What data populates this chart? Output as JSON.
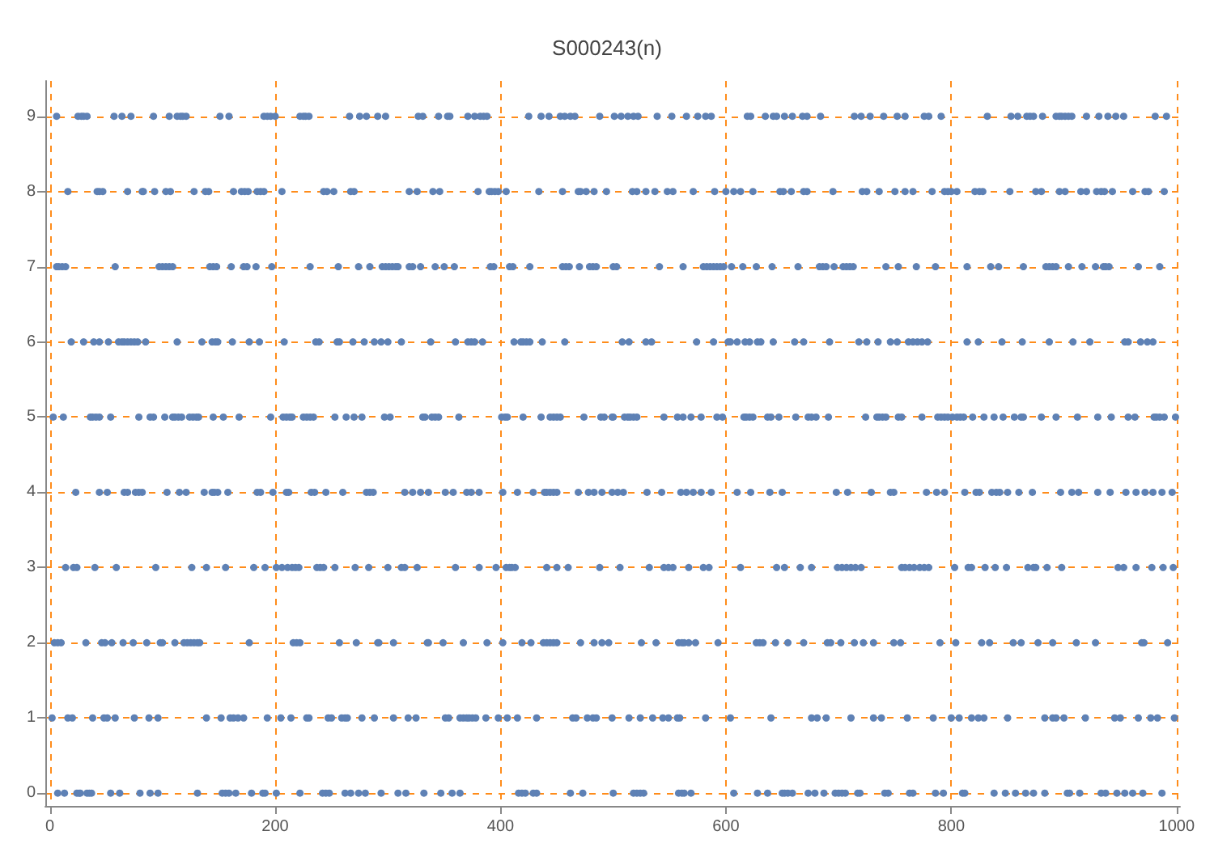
{
  "chart_data": {
    "type": "scatter",
    "title": "S000243(n)",
    "xlim": [
      -4,
      1003
    ],
    "xticks": [
      0,
      200,
      400,
      600,
      800,
      1000
    ],
    "ylim": [
      -0.17,
      9.47
    ],
    "yticks": [
      0,
      1,
      2,
      3,
      4,
      5,
      6,
      7,
      8,
      9
    ],
    "grid": true,
    "marker": "circle",
    "series": [
      {
        "color": "#5e81b5",
        "x": [
          6,
          25,
          28,
          30,
          33,
          57,
          64,
          72,
          92,
          106,
          113,
          116,
          118,
          121,
          151,
          159,
          190,
          193,
          196,
          200,
          222,
          225,
          227,
          230,
          266,
          275,
          281,
          291,
          298,
          327,
          331,
          345,
          353,
          355,
          371,
          377,
          382,
          385,
          388,
          425,
          436,
          443,
          453,
          457,
          462,
          466,
          488,
          501,
          507,
          513,
          518,
          522,
          539,
          552,
          565,
          575,
          582,
          587,
          619,
          622,
          635,
          642,
          645,
          652,
          659,
          668,
          672,
          684,
          714,
          720,
          728,
          740,
          752,
          759,
          776,
          780,
          791,
          832,
          853,
          859,
          867,
          870,
          873,
          881,
          893,
          896,
          898,
          901,
          904,
          907,
          920,
          931,
          939,
          946,
          953,
          981,
          991
        ],
        "values": [
          9,
          9,
          9,
          9,
          9,
          9,
          9,
          9,
          9,
          9,
          9,
          9,
          9,
          9,
          9,
          9,
          9,
          9,
          9,
          9,
          9,
          9,
          9,
          9,
          9,
          9,
          9,
          9,
          9,
          9,
          9,
          9,
          9,
          9,
          9,
          9,
          9,
          9,
          9,
          9,
          9,
          9,
          9,
          9,
          9,
          9,
          9,
          9,
          9,
          9,
          9,
          9,
          9,
          9,
          9,
          9,
          9,
          9,
          9,
          9,
          9,
          9,
          9,
          9,
          9,
          9,
          9,
          9,
          9,
          9,
          9,
          9,
          9,
          9,
          9,
          9,
          9,
          9,
          9,
          9,
          9,
          9,
          9,
          9,
          9,
          9,
          9,
          9,
          9,
          9,
          9,
          9,
          9,
          9,
          9,
          9,
          9
        ]
      },
      {
        "color": "#5e81b5",
        "x": [
          16,
          42,
          44,
          47,
          69,
          82,
          83,
          93,
          103,
          107,
          128,
          138,
          141,
          163,
          170,
          173,
          176,
          184,
          187,
          190,
          206,
          243,
          246,
          252,
          267,
          270,
          319,
          326,
          340,
          346,
          380,
          390,
          392,
          395,
          398,
          405,
          434,
          455,
          469,
          471,
          476,
          483,
          494,
          517,
          521,
          529,
          537,
          548,
          553,
          571,
          590,
          600,
          607,
          613,
          624,
          648,
          651,
          658,
          669,
          672,
          695,
          721,
          725,
          736,
          750,
          759,
          766,
          783,
          794,
          797,
          800,
          805,
          821,
          825,
          828,
          852,
          875,
          880,
          896,
          901,
          915,
          920,
          929,
          933,
          936,
          943,
          961,
          972,
          975,
          989
        ],
        "values": [
          8,
          8,
          8,
          8,
          8,
          8,
          8,
          8,
          8,
          8,
          8,
          8,
          8,
          8,
          8,
          8,
          8,
          8,
          8,
          8,
          8,
          8,
          8,
          8,
          8,
          8,
          8,
          8,
          8,
          8,
          8,
          8,
          8,
          8,
          8,
          8,
          8,
          8,
          8,
          8,
          8,
          8,
          8,
          8,
          8,
          8,
          8,
          8,
          8,
          8,
          8,
          8,
          8,
          8,
          8,
          8,
          8,
          8,
          8,
          8,
          8,
          8,
          8,
          8,
          8,
          8,
          8,
          8,
          8,
          8,
          8,
          8,
          8,
          8,
          8,
          8,
          8,
          8,
          8,
          8,
          8,
          8,
          8,
          8,
          8,
          8,
          8,
          8,
          8,
          8
        ]
      },
      {
        "color": "#5e81b5",
        "x": [
          6,
          8,
          11,
          14,
          58,
          97,
          100,
          103,
          106,
          109,
          142,
          145,
          148,
          161,
          172,
          175,
          183,
          197,
          231,
          256,
          274,
          284,
          295,
          298,
          301,
          304,
          307,
          309,
          319,
          322,
          329,
          342,
          350,
          359,
          391,
          394,
          408,
          411,
          426,
          455,
          458,
          461,
          470,
          479,
          482,
          485,
          500,
          503,
          541,
          562,
          580,
          583,
          586,
          589,
          592,
          595,
          598,
          605,
          615,
          627,
          641,
          664,
          683,
          686,
          689,
          696,
          704,
          707,
          710,
          713,
          742,
          753,
          769,
          786,
          814,
          835,
          842,
          864,
          884,
          887,
          890,
          893,
          904,
          916,
          928,
          935,
          937,
          940,
          966,
          985
        ],
        "values": [
          7,
          7,
          7,
          7,
          7,
          7,
          7,
          7,
          7,
          7,
          7,
          7,
          7,
          7,
          7,
          7,
          7,
          7,
          7,
          7,
          7,
          7,
          7,
          7,
          7,
          7,
          7,
          7,
          7,
          7,
          7,
          7,
          7,
          7,
          7,
          7,
          7,
          7,
          7,
          7,
          7,
          7,
          7,
          7,
          7,
          7,
          7,
          7,
          7,
          7,
          7,
          7,
          7,
          7,
          7,
          7,
          7,
          7,
          7,
          7,
          7,
          7,
          7,
          7,
          7,
          7,
          7,
          7,
          7,
          7,
          7,
          7,
          7,
          7,
          7,
          7,
          7,
          7,
          7,
          7,
          7,
          7,
          7,
          7,
          7,
          7,
          7,
          7,
          7,
          7
        ]
      },
      {
        "color": "#5e81b5",
        "x": [
          19,
          30,
          39,
          44,
          52,
          61,
          64,
          66,
          69,
          72,
          75,
          78,
          85,
          113,
          135,
          144,
          147,
          149,
          162,
          177,
          186,
          208,
          236,
          239,
          255,
          257,
          269,
          279,
          288,
          294,
          300,
          312,
          338,
          360,
          371,
          374,
          377,
          384,
          412,
          418,
          420,
          423,
          426,
          437,
          457,
          508,
          514,
          529,
          534,
          574,
          589,
          602,
          604,
          610,
          617,
          621,
          628,
          631,
          642,
          661,
          669,
          692,
          718,
          725,
          735,
          746,
          752,
          762,
          766,
          770,
          774,
          779,
          814,
          824,
          845,
          863,
          887,
          908,
          923,
          954,
          957,
          968,
          974,
          979
        ],
        "values": [
          6,
          6,
          6,
          6,
          6,
          6,
          6,
          6,
          6,
          6,
          6,
          6,
          6,
          6,
          6,
          6,
          6,
          6,
          6,
          6,
          6,
          6,
          6,
          6,
          6,
          6,
          6,
          6,
          6,
          6,
          6,
          6,
          6,
          6,
          6,
          6,
          6,
          6,
          6,
          6,
          6,
          6,
          6,
          6,
          6,
          6,
          6,
          6,
          6,
          6,
          6,
          6,
          6,
          6,
          6,
          6,
          6,
          6,
          6,
          6,
          6,
          6,
          6,
          6,
          6,
          6,
          6,
          6,
          6,
          6,
          6,
          6,
          6,
          6,
          6,
          6,
          6,
          6,
          6,
          6,
          6,
          6,
          6,
          6
        ]
      },
      {
        "color": "#5e81b5",
        "x": [
          3,
          12,
          36,
          38,
          41,
          44,
          54,
          79,
          89,
          92,
          102,
          109,
          111,
          114,
          117,
          124,
          127,
          130,
          132,
          145,
          154,
          168,
          196,
          207,
          210,
          213,
          215,
          225,
          228,
          231,
          234,
          253,
          263,
          270,
          277,
          297,
          302,
          331,
          333,
          339,
          342,
          345,
          363,
          401,
          404,
          406,
          420,
          436,
          444,
          447,
          450,
          453,
          474,
          489,
          492,
          499,
          500,
          510,
          513,
          515,
          518,
          521,
          545,
          557,
          562,
          569,
          578,
          592,
          597,
          616,
          618,
          621,
          624,
          637,
          640,
          647,
          662,
          673,
          676,
          680,
          691,
          724,
          734,
          736,
          739,
          742,
          753,
          756,
          774,
          788,
          791,
          794,
          797,
          801,
          805,
          808,
          811,
          819,
          829,
          838,
          846,
          856,
          862,
          864,
          880,
          893,
          912,
          930,
          942,
          957,
          963,
          980,
          982,
          985,
          989,
          999
        ],
        "values": [
          5,
          5,
          5,
          5,
          5,
          5,
          5,
          5,
          5,
          5,
          5,
          5,
          5,
          5,
          5,
          5,
          5,
          5,
          5,
          5,
          5,
          5,
          5,
          5,
          5,
          5,
          5,
          5,
          5,
          5,
          5,
          5,
          5,
          5,
          5,
          5,
          5,
          5,
          5,
          5,
          5,
          5,
          5,
          5,
          5,
          5,
          5,
          5,
          5,
          5,
          5,
          5,
          5,
          5,
          5,
          5,
          5,
          5,
          5,
          5,
          5,
          5,
          5,
          5,
          5,
          5,
          5,
          5,
          5,
          5,
          5,
          5,
          5,
          5,
          5,
          5,
          5,
          5,
          5,
          5,
          5,
          5,
          5,
          5,
          5,
          5,
          5,
          5,
          5,
          5,
          5,
          5,
          5,
          5,
          5,
          5,
          5,
          5,
          5,
          5,
          5,
          5,
          5,
          5,
          5,
          5,
          5,
          5,
          5,
          5,
          5,
          5,
          5,
          5,
          5,
          5
        ]
      },
      {
        "color": "#5e81b5",
        "x": [
          23,
          44,
          51,
          66,
          69,
          76,
          79,
          82,
          104,
          115,
          121,
          137,
          144,
          146,
          149,
          158,
          184,
          187,
          198,
          210,
          212,
          232,
          235,
          245,
          260,
          281,
          284,
          287,
          315,
          322,
          329,
          336,
          351,
          358,
          370,
          374,
          381,
          402,
          415,
          429,
          439,
          441,
          444,
          447,
          450,
          469,
          478,
          483,
          490,
          499,
          504,
          509,
          530,
          543,
          560,
          565,
          571,
          578,
          587,
          610,
          622,
          639,
          650,
          698,
          708,
          729,
          746,
          749,
          778,
          787,
          794,
          812,
          822,
          825,
          836,
          840,
          843,
          850,
          860,
          872,
          897,
          907,
          913,
          930,
          941,
          955,
          964,
          972,
          979,
          987,
          996
        ],
        "values": [
          4,
          4,
          4,
          4,
          4,
          4,
          4,
          4,
          4,
          4,
          4,
          4,
          4,
          4,
          4,
          4,
          4,
          4,
          4,
          4,
          4,
          4,
          4,
          4,
          4,
          4,
          4,
          4,
          4,
          4,
          4,
          4,
          4,
          4,
          4,
          4,
          4,
          4,
          4,
          4,
          4,
          4,
          4,
          4,
          4,
          4,
          4,
          4,
          4,
          4,
          4,
          4,
          4,
          4,
          4,
          4,
          4,
          4,
          4,
          4,
          4,
          4,
          4,
          4,
          4,
          4,
          4,
          4,
          4,
          4,
          4,
          4,
          4,
          4,
          4,
          4,
          4,
          4,
          4,
          4,
          4,
          4,
          4,
          4,
          4,
          4,
          4,
          4,
          4,
          4,
          4
        ]
      },
      {
        "color": "#5e81b5",
        "x": [
          14,
          21,
          24,
          40,
          59,
          94,
          126,
          139,
          156,
          181,
          191,
          201,
          206,
          211,
          215,
          218,
          221,
          237,
          240,
          243,
          253,
          271,
          283,
          300,
          312,
          315,
          326,
          360,
          381,
          396,
          405,
          408,
          410,
          413,
          441,
          450,
          460,
          488,
          506,
          532,
          545,
          549,
          553,
          567,
          580,
          585,
          613,
          645,
          652,
          666,
          676,
          699,
          703,
          707,
          711,
          715,
          720,
          756,
          759,
          763,
          767,
          772,
          776,
          780,
          803,
          815,
          818,
          830,
          839,
          849,
          868,
          873,
          875,
          885,
          898,
          948,
          953,
          964,
          978,
          988,
          997
        ],
        "values": [
          3,
          3,
          3,
          3,
          3,
          3,
          3,
          3,
          3,
          3,
          3,
          3,
          3,
          3,
          3,
          3,
          3,
          3,
          3,
          3,
          3,
          3,
          3,
          3,
          3,
          3,
          3,
          3,
          3,
          3,
          3,
          3,
          3,
          3,
          3,
          3,
          3,
          3,
          3,
          3,
          3,
          3,
          3,
          3,
          3,
          3,
          3,
          3,
          3,
          3,
          3,
          3,
          3,
          3,
          3,
          3,
          3,
          3,
          3,
          3,
          3,
          3,
          3,
          3,
          3,
          3,
          3,
          3,
          3,
          3,
          3,
          3,
          3,
          3,
          3,
          3,
          3,
          3,
          3,
          3,
          3
        ]
      },
      {
        "color": "#5e81b5",
        "x": [
          4,
          7,
          10,
          32,
          46,
          49,
          55,
          65,
          74,
          86,
          98,
          100,
          111,
          119,
          122,
          125,
          128,
          131,
          133,
          177,
          216,
          219,
          222,
          257,
          272,
          291,
          292,
          305,
          335,
          336,
          349,
          367,
          388,
          402,
          419,
          427,
          438,
          441,
          444,
          447,
          450,
          471,
          483,
          490,
          496,
          525,
          538,
          558,
          561,
          563,
          567,
          573,
          593,
          627,
          630,
          633,
          644,
          655,
          669,
          690,
          693,
          702,
          714,
          722,
          731,
          749,
          755,
          790,
          804,
          827,
          834,
          855,
          862,
          877,
          890,
          911,
          928,
          969,
          971,
          992
        ],
        "values": [
          2,
          2,
          2,
          2,
          2,
          2,
          2,
          2,
          2,
          2,
          2,
          2,
          2,
          2,
          2,
          2,
          2,
          2,
          2,
          2,
          2,
          2,
          2,
          2,
          2,
          2,
          2,
          2,
          2,
          2,
          2,
          2,
          2,
          2,
          2,
          2,
          2,
          2,
          2,
          2,
          2,
          2,
          2,
          2,
          2,
          2,
          2,
          2,
          2,
          2,
          2,
          2,
          2,
          2,
          2,
          2,
          2,
          2,
          2,
          2,
          2,
          2,
          2,
          2,
          2,
          2,
          2,
          2,
          2,
          2,
          2,
          2,
          2,
          2,
          2,
          2,
          2,
          2,
          2,
          2
        ]
      },
      {
        "color": "#5e81b5",
        "x": [
          2,
          16,
          20,
          38,
          48,
          51,
          58,
          75,
          88,
          96,
          139,
          152,
          160,
          163,
          167,
          172,
          193,
          205,
          214,
          228,
          230,
          247,
          250,
          259,
          262,
          264,
          277,
          288,
          305,
          318,
          325,
          351,
          354,
          364,
          367,
          370,
          372,
          375,
          378,
          387,
          398,
          406,
          415,
          432,
          464,
          467,
          477,
          482,
          485,
          499,
          514,
          524,
          535,
          544,
          549,
          557,
          559,
          582,
          604,
          640,
          676,
          681,
          689,
          711,
          731,
          738,
          761,
          784,
          800,
          807,
          818,
          824,
          829,
          850,
          883,
          890,
          893,
          900,
          919,
          945,
          950,
          966,
          977,
          983,
          998
        ],
        "values": [
          1,
          1,
          1,
          1,
          1,
          1,
          1,
          1,
          1,
          1,
          1,
          1,
          1,
          1,
          1,
          1,
          1,
          1,
          1,
          1,
          1,
          1,
          1,
          1,
          1,
          1,
          1,
          1,
          1,
          1,
          1,
          1,
          1,
          1,
          1,
          1,
          1,
          1,
          1,
          1,
          1,
          1,
          1,
          1,
          1,
          1,
          1,
          1,
          1,
          1,
          1,
          1,
          1,
          1,
          1,
          1,
          1,
          1,
          1,
          1,
          1,
          1,
          1,
          1,
          1,
          1,
          1,
          1,
          1,
          1,
          1,
          1,
          1,
          1,
          1,
          1,
          1,
          1,
          1,
          1,
          1,
          1,
          1,
          1,
          1
        ]
      },
      {
        "color": "#5e81b5",
        "x": [
          7,
          13,
          24,
          26,
          27,
          33,
          35,
          37,
          54,
          62,
          80,
          89,
          96,
          131,
          153,
          156,
          159,
          165,
          179,
          189,
          191,
          201,
          222,
          242,
          245,
          248,
          262,
          267,
          274,
          280,
          294,
          309,
          316,
          332,
          347,
          357,
          364,
          416,
          419,
          422,
          429,
          432,
          462,
          473,
          500,
          518,
          521,
          524,
          527,
          558,
          561,
          563,
          569,
          607,
          628,
          637,
          650,
          652,
          655,
          659,
          673,
          679,
          687,
          697,
          700,
          703,
          706,
          717,
          719,
          741,
          744,
          763,
          766,
          786,
          793,
          810,
          812,
          838,
          848,
          857,
          866,
          873,
          883,
          903,
          905,
          914,
          933,
          937,
          947,
          954,
          961,
          970,
          987
        ],
        "values": [
          0,
          0,
          0,
          0,
          0,
          0,
          0,
          0,
          0,
          0,
          0,
          0,
          0,
          0,
          0,
          0,
          0,
          0,
          0,
          0,
          0,
          0,
          0,
          0,
          0,
          0,
          0,
          0,
          0,
          0,
          0,
          0,
          0,
          0,
          0,
          0,
          0,
          0,
          0,
          0,
          0,
          0,
          0,
          0,
          0,
          0,
          0,
          0,
          0,
          0,
          0,
          0,
          0,
          0,
          0,
          0,
          0,
          0,
          0,
          0,
          0,
          0,
          0,
          0,
          0,
          0,
          0,
          0,
          0,
          0,
          0,
          0,
          0,
          0,
          0,
          0,
          0,
          0,
          0,
          0,
          0,
          0,
          0,
          0,
          0,
          0,
          0,
          0,
          0,
          0,
          0,
          0,
          0
        ]
      }
    ]
  }
}
